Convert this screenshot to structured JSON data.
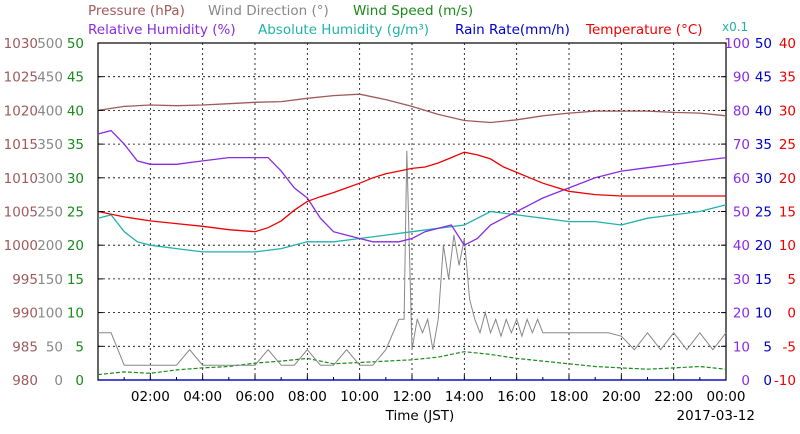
{
  "chart_data": {
    "type": "line",
    "date_label": "2017-03-12",
    "xlabel": "Time (JST)",
    "x_range": [
      "00:00",
      "24:00"
    ],
    "x_ticks": [
      "02:00",
      "04:00",
      "06:00",
      "08:00",
      "10:00",
      "12:00",
      "14:00",
      "16:00",
      "18:00",
      "20:00",
      "22:00",
      "00:00"
    ],
    "grid": true,
    "legend": [
      {
        "text": "Pressure (hPa)",
        "color": "#a05a5a"
      },
      {
        "text": "Wind Direction (°)",
        "color": "#888888"
      },
      {
        "text": "Wind Speed (m/s)",
        "color": "#1a8a1a"
      },
      {
        "text": "Relative Humidity (%)",
        "color": "#8a2be2"
      },
      {
        "text": "Absolute Humidity (g/m³)",
        "color": "#20b2aa"
      },
      {
        "text": "Rain Rate(mm/h)",
        "color": "#0000cc"
      },
      {
        "text": "Temperature (°C)",
        "color": "#ee0000"
      },
      {
        "text": "x0.1",
        "color": "#20b2aa"
      }
    ],
    "axes": {
      "pressure": {
        "color": "#a05a5a",
        "ylim": [
          980,
          1030
        ],
        "ticks": [
          "980",
          "985",
          "990",
          "995",
          "1000",
          "1005",
          "1010",
          "1015",
          "1020",
          "1025",
          "1030"
        ]
      },
      "wind_direction": {
        "color": "#888888",
        "ylim": [
          0,
          500
        ],
        "ticks": [
          "0",
          "50",
          "100",
          "150",
          "200",
          "250",
          "300",
          "350",
          "400",
          "450",
          "500"
        ]
      },
      "wind_speed": {
        "color": "#1a8a1a",
        "ylim": [
          0,
          50
        ],
        "ticks": [
          "0",
          "5",
          "10",
          "15",
          "20",
          "25",
          "30",
          "35",
          "40",
          "45",
          "50"
        ]
      },
      "relative_humidity": {
        "color": "#8a2be2",
        "ylim": [
          0,
          100
        ],
        "ticks": [
          "0",
          "10",
          "20",
          "30",
          "40",
          "50",
          "60",
          "70",
          "80",
          "90",
          "100"
        ]
      },
      "rain_rate": {
        "color": "#0000cc",
        "ylim": [
          0,
          50
        ],
        "ticks": [
          "0",
          "5",
          "10",
          "15",
          "20",
          "25",
          "30",
          "35",
          "40",
          "45",
          "50"
        ]
      },
      "temperature": {
        "color": "#ee0000",
        "ylim": [
          -10,
          40
        ],
        "ticks": [
          "-10",
          "-5",
          "0",
          "5",
          "10",
          "15",
          "20",
          "25",
          "30",
          "35",
          "40"
        ]
      }
    },
    "series": [
      {
        "name": "Pressure (hPa)",
        "axis": "pressure",
        "color": "#a05a5a",
        "x": [
          0,
          1,
          2,
          3,
          4,
          5,
          6,
          7,
          8,
          9,
          10,
          11,
          12,
          13,
          14,
          15,
          16,
          17,
          18,
          19,
          20,
          21,
          22,
          23,
          24
        ],
        "y": [
          1020.0,
          1020.6,
          1020.8,
          1020.7,
          1020.8,
          1021.0,
          1021.2,
          1021.3,
          1021.8,
          1022.2,
          1022.4,
          1021.6,
          1020.6,
          1019.4,
          1018.5,
          1018.2,
          1018.6,
          1019.2,
          1019.6,
          1019.9,
          1019.9,
          1019.9,
          1019.7,
          1019.6,
          1019.2
        ]
      },
      {
        "name": "Wind Direction (°)",
        "axis": "wind_direction",
        "color": "#888888",
        "x": [
          0,
          0.5,
          1,
          1.5,
          2,
          2.5,
          3,
          3.5,
          4,
          4.5,
          5,
          5.5,
          6,
          6.5,
          7,
          7.5,
          8,
          8.5,
          9,
          9.5,
          10,
          10.5,
          11,
          11.5,
          11.7,
          11.8,
          12,
          12.2,
          12.4,
          12.6,
          12.8,
          13,
          13.2,
          13.4,
          13.6,
          13.8,
          14,
          14.2,
          14.4,
          14.6,
          14.8,
          15,
          15.2,
          15.4,
          15.6,
          15.8,
          16,
          16.2,
          16.4,
          16.6,
          16.8,
          17,
          17.5,
          18,
          18.5,
          19,
          19.5,
          20,
          20.5,
          21,
          21.5,
          22,
          22.5,
          23,
          23.5,
          24
        ],
        "y": [
          70,
          70,
          22,
          22,
          22,
          22,
          22,
          45,
          22,
          22,
          22,
          22,
          22,
          45,
          22,
          22,
          45,
          22,
          22,
          45,
          22,
          22,
          45,
          90,
          90,
          340,
          45,
          90,
          70,
          90,
          45,
          90,
          200,
          150,
          215,
          170,
          210,
          120,
          90,
          70,
          100,
          70,
          90,
          65,
          90,
          70,
          90,
          65,
          90,
          70,
          90,
          70,
          70,
          70,
          70,
          70,
          70,
          65,
          45,
          70,
          45,
          70,
          45,
          70,
          45,
          70
        ]
      },
      {
        "name": "Wind Speed (m/s)",
        "axis": "wind_speed",
        "color": "#1a8a1a",
        "x": [
          0,
          1,
          2,
          3,
          4,
          5,
          6,
          7,
          8,
          9,
          10,
          11,
          12,
          13,
          14,
          15,
          16,
          17,
          18,
          19,
          20,
          21,
          22,
          23,
          24
        ],
        "y": [
          0.8,
          1.2,
          1.0,
          1.5,
          1.8,
          2.0,
          2.5,
          2.8,
          3.2,
          2.4,
          2.6,
          2.8,
          3.0,
          3.4,
          4.2,
          3.8,
          3.2,
          2.8,
          2.4,
          2.0,
          1.8,
          1.6,
          1.8,
          2.0,
          1.6
        ]
      },
      {
        "name": "Relative Humidity (%)",
        "axis": "relative_humidity",
        "color": "#8a2be2",
        "x": [
          0,
          0.5,
          1,
          1.5,
          2,
          3,
          4,
          5,
          5.5,
          6,
          6.5,
          7,
          7.5,
          8,
          8.5,
          9,
          9.5,
          10,
          10.5,
          11,
          11.5,
          12,
          12.5,
          13,
          13.5,
          14,
          14.5,
          15,
          15.5,
          16,
          16.5,
          17,
          18,
          19,
          20,
          21,
          22,
          23,
          24
        ],
        "y": [
          73,
          74,
          70,
          65,
          64,
          64,
          65,
          66,
          66,
          66,
          66,
          62,
          57,
          54,
          48,
          44,
          43,
          42,
          41,
          41,
          41,
          42,
          44,
          45,
          46,
          40,
          42,
          46,
          48,
          50,
          52,
          54,
          57,
          60,
          62,
          63,
          64,
          65,
          66
        ]
      },
      {
        "name": "Absolute Humidity (g/m³)",
        "axis": "relative_humidity",
        "color": "#20b2aa",
        "x": [
          0,
          0.5,
          1,
          1.5,
          2,
          3,
          4,
          5,
          6,
          7,
          8,
          9,
          10,
          11,
          12,
          13,
          14,
          15,
          16,
          17,
          18,
          19,
          20,
          21,
          22,
          23,
          24
        ],
        "y": [
          48,
          49,
          44,
          41,
          40,
          39,
          38,
          38,
          38,
          39,
          41,
          41,
          42,
          43,
          44,
          45,
          46,
          50,
          49,
          48,
          47,
          47,
          46,
          48,
          49,
          50,
          52
        ]
      },
      {
        "name": "Rain Rate(mm/h)",
        "axis": "rain_rate",
        "color": "#0000cc",
        "x": [
          0,
          24
        ],
        "y": [
          0,
          0
        ]
      },
      {
        "name": "Temperature (°C)",
        "axis": "temperature",
        "color": "#ee0000",
        "x": [
          0,
          1,
          2,
          3,
          4,
          5,
          6,
          6.5,
          7,
          7.5,
          8,
          8.5,
          9,
          9.5,
          10,
          10.5,
          11,
          11.5,
          12,
          12.5,
          13,
          13.5,
          14,
          14.5,
          15,
          15.5,
          16,
          16.5,
          17,
          18,
          19,
          20,
          21,
          22,
          23,
          24
        ],
        "y": [
          15,
          14.2,
          13.6,
          13.2,
          12.8,
          12.3,
          12.0,
          12.6,
          13.6,
          15.2,
          16.5,
          17.2,
          17.8,
          18.5,
          19.2,
          20.0,
          20.6,
          21.0,
          21.4,
          21.6,
          22.2,
          23.0,
          23.8,
          23.4,
          22.8,
          21.6,
          20.8,
          20.0,
          19.2,
          18.0,
          17.5,
          17.3,
          17.3,
          17.3,
          17.3,
          17.3
        ]
      }
    ]
  }
}
